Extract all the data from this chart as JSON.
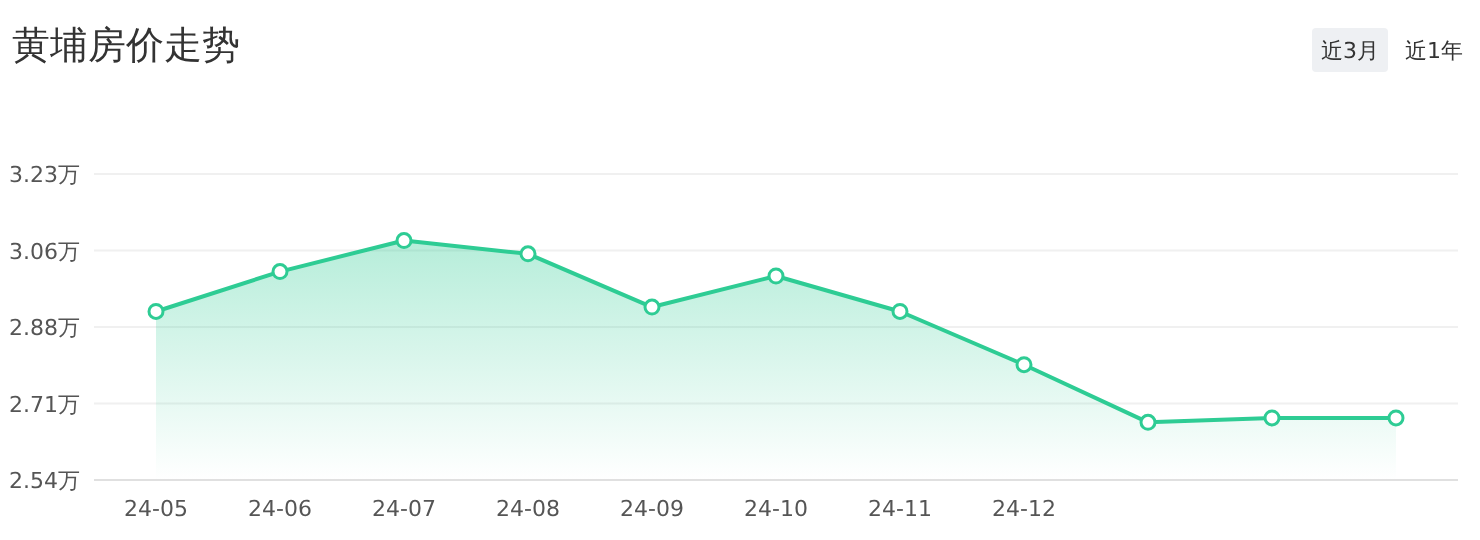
{
  "chart_data": {
    "type": "area",
    "title": "黄埔房价走势",
    "categories": [
      "24-05",
      "24-06",
      "24-07",
      "24-08",
      "24-09",
      "24-10",
      "24-11",
      "24-12",
      null,
      null,
      null
    ],
    "series": [
      {
        "color": "#2ecc94",
        "values": [
          2.92,
          3.01,
          3.08,
          3.05,
          2.93,
          3.0,
          2.92,
          2.8,
          2.67,
          2.68,
          2.68
        ]
      }
    ],
    "ylim": [
      2.54,
      3.23
    ],
    "yticks": [
      {
        "value": 2.54,
        "label": "2.54万"
      },
      {
        "value": 2.7125,
        "label": "2.71万"
      },
      {
        "value": 2.885,
        "label": "2.88万"
      },
      {
        "value": 3.0575,
        "label": "3.06万"
      },
      {
        "value": 3.23,
        "label": "3.23万"
      }
    ],
    "grid": "y",
    "marker": "circle",
    "annotations": [
      "近3月",
      "近1年"
    ]
  }
}
